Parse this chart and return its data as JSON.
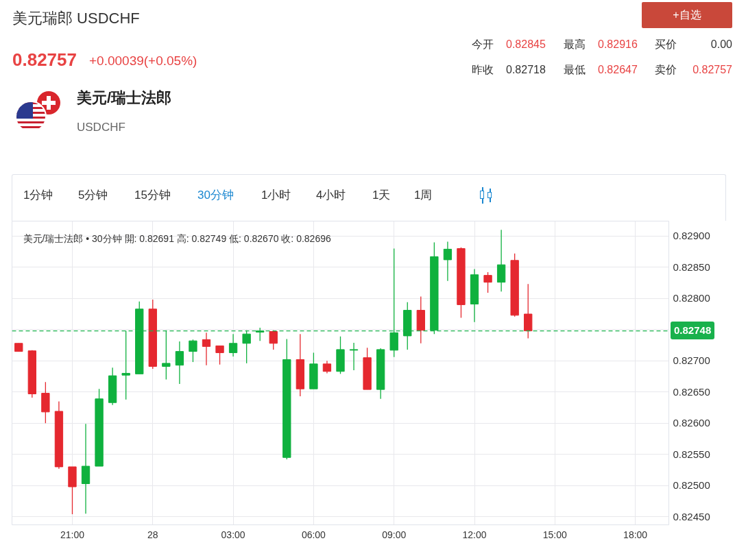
{
  "chart_data": {
    "type": "candlestick",
    "title": "美元瑞郎 USDCHF",
    "subtitle": "0.82757",
    "annotations": [
      "+0.00039(+0.05%)",
      "今开",
      "0.82845",
      "最高",
      "0.82916",
      "买价",
      "0.00",
      "昨收",
      "0.82718",
      "最低",
      "0.82647",
      "卖价",
      "0.82757",
      "美元/瑞士法郎",
      "USDCHF",
      "+自选",
      "1分钟",
      "5分钟",
      "15分钟",
      "30分钟",
      "1小时",
      "4小时",
      "1天",
      "1周",
      "美元/瑞士法郎 • 30分钟  開: 0.82691  高: 0.82749  低: 0.82670  收: 0.82696"
    ],
    "categories": [
      null,
      null,
      null,
      null,
      "21:00",
      null,
      null,
      null,
      null,
      null,
      "28",
      null,
      null,
      null,
      null,
      null,
      "03:00",
      null,
      null,
      null,
      null,
      null,
      "06:00",
      null,
      null,
      null,
      null,
      null,
      "09:00",
      null,
      null,
      null,
      null,
      null,
      "12:00",
      null,
      null,
      null,
      null,
      null,
      "15:00",
      null,
      null,
      null,
      null,
      null,
      "18:00",
      null,
      null
    ],
    "ohlc": [
      [
        0.82728,
        0.82728,
        0.82715,
        0.82715
      ],
      [
        0.82716,
        0.82717,
        0.82641,
        0.82647
      ],
      [
        0.82648,
        0.82666,
        0.826,
        0.82618
      ],
      [
        0.82619,
        0.82635,
        0.82527,
        0.8253
      ],
      [
        0.8253,
        0.8253,
        0.82454,
        0.82498
      ],
      [
        0.82503,
        0.82599,
        0.82455,
        0.82531
      ],
      [
        0.82531,
        0.82655,
        0.82531,
        0.82639
      ],
      [
        0.82633,
        0.82689,
        0.82629,
        0.82676
      ],
      [
        0.82677,
        0.82748,
        0.82638,
        0.8268
      ],
      [
        0.82679,
        0.82795,
        0.82679,
        0.82783
      ],
      [
        0.82783,
        0.82798,
        0.82687,
        0.82691
      ],
      [
        0.82691,
        0.82749,
        0.8267,
        0.82696
      ],
      [
        0.82693,
        0.82731,
        0.82663,
        0.82715
      ],
      [
        0.82715,
        0.82734,
        0.82698,
        0.82732
      ],
      [
        0.82734,
        0.82745,
        0.82693,
        0.82723
      ],
      [
        0.82724,
        0.82724,
        0.82694,
        0.82713
      ],
      [
        0.82713,
        0.82743,
        0.82707,
        0.82728
      ],
      [
        0.82728,
        0.82749,
        0.82696,
        0.82743
      ],
      [
        0.82746,
        0.82753,
        0.82732,
        0.82748
      ],
      [
        0.82747,
        0.82749,
        0.82718,
        0.82728
      ],
      [
        0.82545,
        0.82735,
        0.82542,
        0.82702
      ],
      [
        0.82702,
        0.82743,
        0.82643,
        0.82655
      ],
      [
        0.82655,
        0.82713,
        0.82655,
        0.82695
      ],
      [
        0.82695,
        0.827,
        0.8268,
        0.82683
      ],
      [
        0.82683,
        0.82739,
        0.82679,
        0.82718
      ],
      [
        0.82717,
        0.82729,
        0.82685,
        0.82718
      ],
      [
        0.82705,
        0.82721,
        0.82654,
        0.82654
      ],
      [
        0.82654,
        0.8272,
        0.82639,
        0.82718
      ],
      [
        0.82717,
        0.8288,
        0.82706,
        0.82745
      ],
      [
        0.8274,
        0.82794,
        0.82718,
        0.82781
      ],
      [
        0.82781,
        0.82803,
        0.82728,
        0.82749
      ],
      [
        0.82749,
        0.8289,
        0.82743,
        0.82867
      ],
      [
        0.82862,
        0.82891,
        0.82828,
        0.82879
      ],
      [
        0.8288,
        0.82882,
        0.82769,
        0.8279
      ],
      [
        0.82791,
        0.82847,
        0.82762,
        0.82838
      ],
      [
        0.82837,
        0.82842,
        0.82809,
        0.82826
      ],
      [
        0.82826,
        0.8291,
        0.82811,
        0.82854
      ],
      [
        0.82861,
        0.82872,
        0.82771,
        0.82773
      ],
      [
        0.82775,
        0.82823,
        0.82736,
        0.82748
      ],
      null,
      null,
      null,
      null,
      null,
      null,
      null,
      null,
      null,
      null
    ],
    "colors": [
      "#e5282f",
      "#e5282f",
      "#e5282f",
      "#e5282f",
      "#e5282f",
      "#0fb13e",
      "#0fb13e",
      "#0fb13e",
      "#0fb13e",
      "#0fb13e",
      "#e5282f",
      "#0fb13e",
      "#0fb13e",
      "#0fb13e",
      "#e5282f",
      "#e5282f",
      "#0fb13e",
      "#0fb13e",
      "#0fb13e",
      "#e5282f",
      "#0fb13e",
      "#e5282f",
      "#0fb13e",
      "#e5282f",
      "#0fb13e",
      "#0fb13e",
      "#e5282f",
      "#0fb13e",
      "#0fb13e",
      "#0fb13e",
      "#e5282f",
      "#0fb13e",
      "#0fb13e",
      "#e5282f",
      "#0fb13e",
      "#e5282f",
      "#0fb13e",
      "#e5282f",
      "#e5282f",
      null,
      null,
      null,
      null,
      null,
      null,
      null,
      null,
      null,
      null
    ],
    "ylim": [
      0.82437,
      0.82924
    ],
    "yticks": [
      {
        "value": 0.8245,
        "label": "0.82450"
      },
      {
        "value": 0.825,
        "label": "0.82500"
      },
      {
        "value": 0.8255,
        "label": "0.82550"
      },
      {
        "value": 0.826,
        "label": "0.82600"
      },
      {
        "value": 0.8265,
        "label": "0.82650"
      },
      {
        "value": 0.827,
        "label": "0.82700"
      },
      {
        "value": 0.8275,
        "label": null
      },
      {
        "value": 0.828,
        "label": "0.82800"
      },
      {
        "value": 0.8285,
        "label": "0.82850"
      },
      {
        "value": 0.829,
        "label": "0.82900"
      }
    ],
    "ref_lines": [
      {
        "axis": "y",
        "value": 0.82748,
        "label": "0.82748",
        "color": "#19b14c",
        "line_style": "dashed"
      }
    ],
    "grid": true
  }
}
